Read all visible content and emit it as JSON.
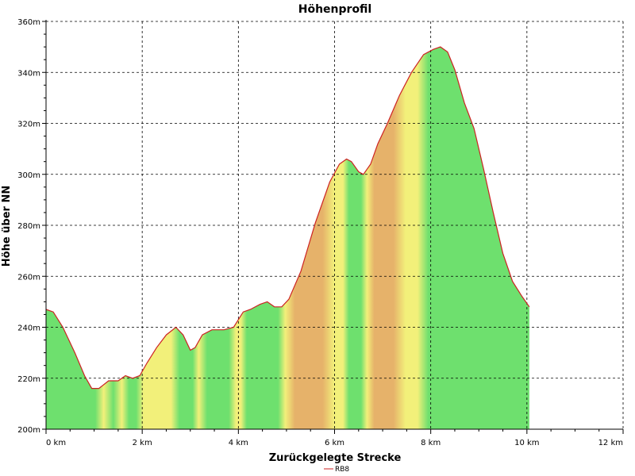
{
  "chart_data": {
    "type": "area",
    "title": "Höhenprofil",
    "xlabel": "Zurückgelegte Strecke",
    "ylabel": "Höhe über NN",
    "xlim": [
      0,
      12
    ],
    "ylim": [
      200,
      360
    ],
    "x_ticks": [
      0,
      2,
      4,
      6,
      8,
      10,
      12
    ],
    "x_tick_labels": [
      "0 km",
      "2 km",
      "4 km",
      "6 km",
      "8 km",
      "10 km",
      "12 km"
    ],
    "y_ticks": [
      200,
      220,
      240,
      260,
      280,
      300,
      320,
      340,
      360
    ],
    "y_tick_labels": [
      "200m",
      "220m",
      "240m",
      "260m",
      "280m",
      "300m",
      "320m",
      "340m",
      "360m"
    ],
    "grid": true,
    "legend_position": "bottom-center",
    "series": [
      {
        "name": "RB8",
        "x": [
          0,
          0.15,
          0.35,
          0.6,
          0.8,
          0.95,
          1.1,
          1.3,
          1.5,
          1.65,
          1.8,
          1.95,
          2.1,
          2.3,
          2.5,
          2.7,
          2.85,
          3.0,
          3.1,
          3.25,
          3.45,
          3.7,
          3.9,
          4.0,
          4.1,
          4.25,
          4.45,
          4.6,
          4.75,
          4.9,
          5.05,
          5.3,
          5.6,
          5.9,
          6.1,
          6.25,
          6.35,
          6.5,
          6.6,
          6.75,
          6.9,
          7.1,
          7.35,
          7.6,
          7.85,
          8.05,
          8.2,
          8.35,
          8.5,
          8.7,
          8.9,
          9.1,
          9.3,
          9.5,
          9.7,
          9.9,
          10.05
        ],
        "y": [
          247,
          246,
          240,
          230,
          221,
          216,
          216,
          219,
          219,
          221,
          220,
          221,
          226,
          232,
          237,
          240,
          237,
          231,
          232,
          237,
          239,
          239,
          240,
          243,
          246,
          247,
          249,
          250,
          248,
          248,
          251,
          262,
          281,
          297,
          304,
          306,
          305,
          301,
          300,
          304,
          312,
          320,
          331,
          340,
          347,
          349,
          350,
          348,
          341,
          328,
          318,
          302,
          285,
          269,
          258,
          252,
          248
        ]
      }
    ],
    "colors": {
      "line": "#cc2222",
      "flat": "#6ee06e",
      "moderate": "#f2f07a",
      "steep": "#e6b26a"
    }
  }
}
